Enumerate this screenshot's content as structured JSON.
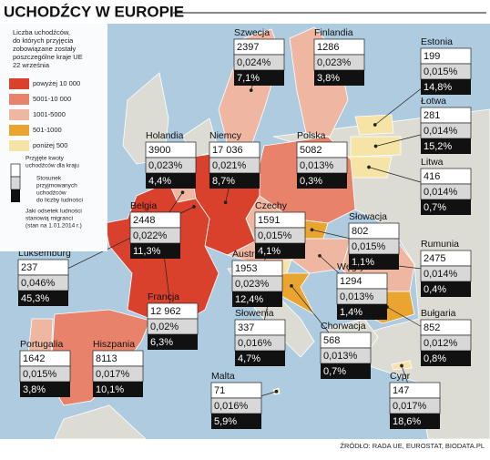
{
  "header": {
    "title": "UCHODŹCY W EUROPIE"
  },
  "legend": {
    "description": [
      "Liczba uchodźców,",
      "do których przyjęcia",
      "zobowiązane zostały",
      "poszczególne kraje UE",
      "22 września"
    ],
    "items": [
      {
        "label": "powyżej 10 000",
        "color": "#d9412d"
      },
      {
        "label": "5001-10 000",
        "color": "#e8826b"
      },
      {
        "label": "1001-5000",
        "color": "#efb7a2"
      },
      {
        "label": "501-1000",
        "color": "#e9a530"
      },
      {
        "label": "poniżej 500",
        "color": "#f6e4a6"
      }
    ],
    "box_notes": [
      [
        "Przyjęte kwoty",
        "uchodźców dla kraju"
      ],
      [
        "Stosunek",
        "przyjmowanych",
        "uchodźców",
        "do liczby ludności"
      ],
      [
        "Jaki odsetek ludności",
        "stanowią migranci",
        "(stan na 1.01.2014 r.)"
      ]
    ]
  },
  "countries": [
    {
      "name": "Szwecja",
      "refugees": "2397",
      "ratio": "0,024%",
      "migrants": "7,1%",
      "color": "#efb7a2"
    },
    {
      "name": "Finlandia",
      "refugees": "1286",
      "ratio": "0,023%",
      "migrants": "3,8%",
      "color": "#efb7a2"
    },
    {
      "name": "Estonia",
      "refugees": "199",
      "ratio": "0,015%",
      "migrants": "14,8%",
      "color": "#f6e4a6"
    },
    {
      "name": "Łotwa",
      "refugees": "281",
      "ratio": "0,014%",
      "migrants": "15,2%",
      "color": "#f6e4a6"
    },
    {
      "name": "Litwa",
      "refugees": "416",
      "ratio": "0,014%",
      "migrants": "0,7%",
      "color": "#f6e4a6"
    },
    {
      "name": "Holandia",
      "refugees": "3900",
      "ratio": "0,023%",
      "migrants": "4,4%",
      "color": "#efb7a2"
    },
    {
      "name": "Niemcy",
      "refugees": "17 036",
      "ratio": "0,021%",
      "migrants": "8,7%",
      "color": "#d9412d"
    },
    {
      "name": "Polska",
      "refugees": "5082",
      "ratio": "0,013%",
      "migrants": "0,3%",
      "color": "#e8826b"
    },
    {
      "name": "Belgia",
      "refugees": "2448",
      "ratio": "0,022%",
      "migrants": "11,3%",
      "color": "#efb7a2"
    },
    {
      "name": "Czechy",
      "refugees": "1591",
      "ratio": "0,015%",
      "migrants": "4,1%",
      "color": "#efb7a2"
    },
    {
      "name": "Słowacja",
      "refugees": "802",
      "ratio": "0,015%",
      "migrants": "1,1%",
      "color": "#e9a530"
    },
    {
      "name": "Rumunia",
      "refugees": "2475",
      "ratio": "0,014%",
      "migrants": "0,4%",
      "color": "#efb7a2"
    },
    {
      "name": "Luksemburg",
      "refugees": "237",
      "ratio": "0,046%",
      "migrants": "45,3%",
      "color": "#f6e4a6"
    },
    {
      "name": "Austria",
      "refugees": "1953",
      "ratio": "0,023%",
      "migrants": "12,4%",
      "color": "#efb7a2"
    },
    {
      "name": "Węgry",
      "refugees": "1294",
      "ratio": "0,013%",
      "migrants": "1,4%",
      "color": "#efb7a2"
    },
    {
      "name": "Francja",
      "refugees": "12 962",
      "ratio": "0,02%",
      "migrants": "6,3%",
      "color": "#d9412d"
    },
    {
      "name": "Słowenia",
      "refugees": "337",
      "ratio": "0,016%",
      "migrants": "4,7%",
      "color": "#f6e4a6"
    },
    {
      "name": "Chorwacja",
      "refugees": "568",
      "ratio": "0,013%",
      "migrants": "0,7%",
      "color": "#e9a530"
    },
    {
      "name": "Bułgaria",
      "refugees": "852",
      "ratio": "0,012%",
      "migrants": "0,8%",
      "color": "#e9a530"
    },
    {
      "name": "Portugalia",
      "refugees": "1642",
      "ratio": "0,015%",
      "migrants": "3,8%",
      "color": "#efb7a2"
    },
    {
      "name": "Hiszpania",
      "refugees": "8113",
      "ratio": "0,017%",
      "migrants": "10,1%",
      "color": "#e8826b"
    },
    {
      "name": "Malta",
      "refugees": "71",
      "ratio": "0,016%",
      "migrants": "5,9%",
      "color": "#f6e4a6"
    },
    {
      "name": "Cypr",
      "refugees": "147",
      "ratio": "0,017%",
      "migrants": "18,6%",
      "color": "#f6e4a6"
    }
  ],
  "footer": {
    "source": "ŹRÓDŁO: RADA UE, EUROSTAT, BIODATA.PL"
  }
}
